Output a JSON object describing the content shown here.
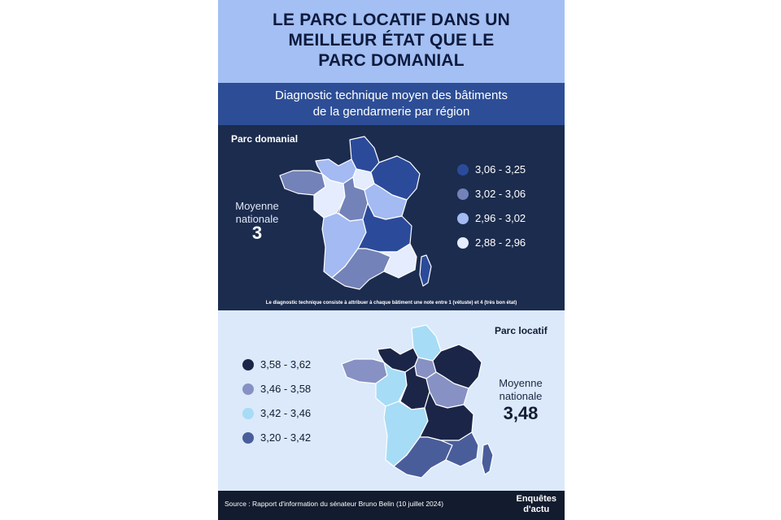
{
  "header": {
    "title_lines": [
      "LE PARC LOCATIF DANS UN",
      "MEILLEUR ÉTAT QUE LE",
      "PARC DOMANIAL"
    ],
    "subtitle_lines": [
      "Diagnostic technique moyen des bâtiments",
      "de la gendarmerie par région"
    ]
  },
  "domanial": {
    "label": "Parc domanial",
    "average_label_lines": [
      "Moyenne",
      "nationale"
    ],
    "average_value": "3",
    "legend": [
      {
        "label": "3,06 - 3,25",
        "color": "#2b4b9a"
      },
      {
        "label": "3,02 - 3,06",
        "color": "#7382b8"
      },
      {
        "label": "2,96 - 3,02",
        "color": "#a3baf2"
      },
      {
        "label": "2,88 - 2,96",
        "color": "#e4ecfd"
      }
    ],
    "regions": [
      {
        "id": "hauts-de-france",
        "class": 0
      },
      {
        "id": "normandie",
        "class": 2
      },
      {
        "id": "bretagne",
        "class": 1
      },
      {
        "id": "ile-de-france",
        "class": 3
      },
      {
        "id": "grand-est",
        "class": 0
      },
      {
        "id": "pays-de-la-loire",
        "class": 3
      },
      {
        "id": "centre-val-de-loire",
        "class": 1
      },
      {
        "id": "bourgogne-franche-comte",
        "class": 2
      },
      {
        "id": "nouvelle-aquitaine",
        "class": 2
      },
      {
        "id": "auvergne-rhone-alpes",
        "class": 0
      },
      {
        "id": "occitanie",
        "class": 1
      },
      {
        "id": "paca",
        "class": 3
      },
      {
        "id": "corse",
        "class": 0
      }
    ],
    "note": "Le diagnostic technique consiste à attribuer à chaque bâtiment une note entre 1 (vétuste) et 4 (très bon état)"
  },
  "locatif": {
    "label": "Parc locatif",
    "average_label_lines": [
      "Moyenne",
      "nationale"
    ],
    "average_value": "3,48",
    "legend": [
      {
        "label": "3,58 - 3,62",
        "color": "#1b2547"
      },
      {
        "label": "3,46 - 3,58",
        "color": "#8791c3"
      },
      {
        "label": "3,42 - 3,46",
        "color": "#a6dcf6"
      },
      {
        "label": "3,20 - 3,42",
        "color": "#4a5d9b"
      }
    ],
    "regions": [
      {
        "id": "hauts-de-france",
        "class": 2
      },
      {
        "id": "normandie",
        "class": 0
      },
      {
        "id": "bretagne",
        "class": 1
      },
      {
        "id": "ile-de-france",
        "class": 1
      },
      {
        "id": "grand-est",
        "class": 0
      },
      {
        "id": "pays-de-la-loire",
        "class": 2
      },
      {
        "id": "centre-val-de-loire",
        "class": 0
      },
      {
        "id": "bourgogne-franche-comte",
        "class": 1
      },
      {
        "id": "nouvelle-aquitaine",
        "class": 2
      },
      {
        "id": "auvergne-rhone-alpes",
        "class": 0
      },
      {
        "id": "occitanie",
        "class": 3
      },
      {
        "id": "paca",
        "class": 3
      },
      {
        "id": "corse",
        "class": 3
      }
    ]
  },
  "footer": {
    "source": "Source : Rapport d'information du sénateur Bruno Belin (10 juillet 2024)",
    "brand_lines": [
      "Enquêtes",
      "d'actu"
    ]
  }
}
